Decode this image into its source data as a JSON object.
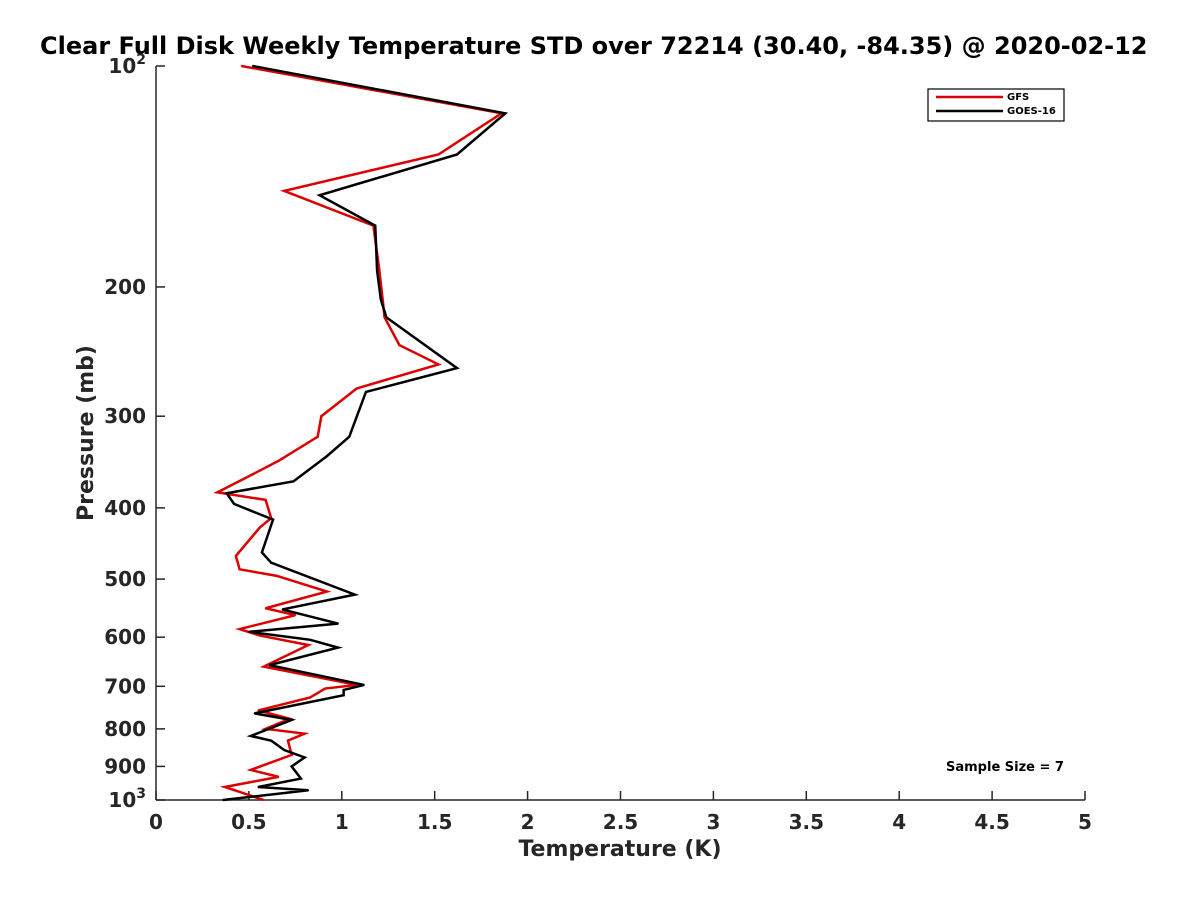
{
  "chart_data": {
    "type": "line",
    "title": "Clear Full Disk Weekly Temperature STD over 72214 (30.40, -84.35) @ 2020-02-12",
    "xlabel": "Temperature (K)",
    "ylabel": "Pressure (mb)",
    "xlim": [
      0,
      5
    ],
    "ylim": [
      100,
      1000
    ],
    "y_scale": "log",
    "y_reversed": true,
    "x_ticks": [
      0,
      0.5,
      1,
      1.5,
      2,
      2.5,
      3,
      3.5,
      4,
      4.5,
      5
    ],
    "x_tick_labels": [
      "0",
      "0.5",
      "1",
      "1.5",
      "2",
      "2.5",
      "3",
      "3.5",
      "4",
      "4.5",
      "5"
    ],
    "y_ticks": [
      100,
      200,
      300,
      400,
      500,
      600,
      700,
      800,
      900,
      1000
    ],
    "y_tick_labels": [
      {
        "base": "10",
        "sup": "2"
      },
      {
        "base": "200",
        "sup": ""
      },
      {
        "base": "300",
        "sup": ""
      },
      {
        "base": "400",
        "sup": ""
      },
      {
        "base": "500",
        "sup": ""
      },
      {
        "base": "600",
        "sup": ""
      },
      {
        "base": "700",
        "sup": ""
      },
      {
        "base": "800",
        "sup": ""
      },
      {
        "base": "900",
        "sup": ""
      },
      {
        "base": "10",
        "sup": "3"
      }
    ],
    "legend_position": "top-right",
    "series": [
      {
        "name": "GFS",
        "color": "#dd0000",
        "points": [
          [
            0.46,
            100
          ],
          [
            1.86,
            116
          ],
          [
            1.52,
            132
          ],
          [
            0.69,
            148
          ],
          [
            1.17,
            165
          ],
          [
            1.2,
            188
          ],
          [
            1.22,
            208
          ],
          [
            1.23,
            220
          ],
          [
            1.31,
            240
          ],
          [
            1.52,
            255
          ],
          [
            1.08,
            275
          ],
          [
            0.89,
            300
          ],
          [
            0.87,
            320
          ],
          [
            0.66,
            345
          ],
          [
            0.52,
            360
          ],
          [
            0.33,
            381
          ],
          [
            0.59,
            390
          ],
          [
            0.62,
            413
          ],
          [
            0.56,
            425
          ],
          [
            0.43,
            465
          ],
          [
            0.45,
            485
          ],
          [
            0.65,
            495
          ],
          [
            0.92,
            520
          ],
          [
            0.59,
            548
          ],
          [
            0.75,
            560
          ],
          [
            0.45,
            585
          ],
          [
            0.56,
            597
          ],
          [
            0.82,
            615
          ],
          [
            0.58,
            658
          ],
          [
            1.08,
            697
          ],
          [
            0.91,
            705
          ],
          [
            0.83,
            725
          ],
          [
            0.55,
            755
          ],
          [
            0.72,
            775
          ],
          [
            0.59,
            800
          ],
          [
            0.8,
            812
          ],
          [
            0.71,
            830
          ],
          [
            0.73,
            868
          ],
          [
            0.51,
            910
          ],
          [
            0.66,
            930
          ],
          [
            0.37,
            960
          ],
          [
            0.58,
            1000
          ]
        ]
      },
      {
        "name": "GOES-16",
        "color": "#000000",
        "points": [
          [
            0.52,
            100
          ],
          [
            1.88,
            116
          ],
          [
            1.62,
            132
          ],
          [
            0.88,
            150
          ],
          [
            1.18,
            165
          ],
          [
            1.19,
            190
          ],
          [
            1.21,
            208
          ],
          [
            1.24,
            220
          ],
          [
            1.62,
            258
          ],
          [
            1.13,
            278
          ],
          [
            1.04,
            320
          ],
          [
            0.92,
            340
          ],
          [
            0.74,
            368
          ],
          [
            0.38,
            382
          ],
          [
            0.42,
            395
          ],
          [
            0.63,
            415
          ],
          [
            0.57,
            460
          ],
          [
            0.62,
            475
          ],
          [
            1.07,
            525
          ],
          [
            0.68,
            550
          ],
          [
            0.98,
            575
          ],
          [
            0.5,
            590
          ],
          [
            0.83,
            605
          ],
          [
            0.98,
            620
          ],
          [
            0.61,
            655
          ],
          [
            1.12,
            697
          ],
          [
            1.01,
            708
          ],
          [
            1.01,
            720
          ],
          [
            0.53,
            762
          ],
          [
            0.73,
            778
          ],
          [
            0.51,
            818
          ],
          [
            0.62,
            830
          ],
          [
            0.69,
            855
          ],
          [
            0.8,
            875
          ],
          [
            0.73,
            900
          ],
          [
            0.78,
            935
          ],
          [
            0.55,
            960
          ],
          [
            0.82,
            970
          ],
          [
            0.36,
            1000
          ]
        ]
      }
    ],
    "annotations": [
      "Sample Size = 7"
    ]
  }
}
